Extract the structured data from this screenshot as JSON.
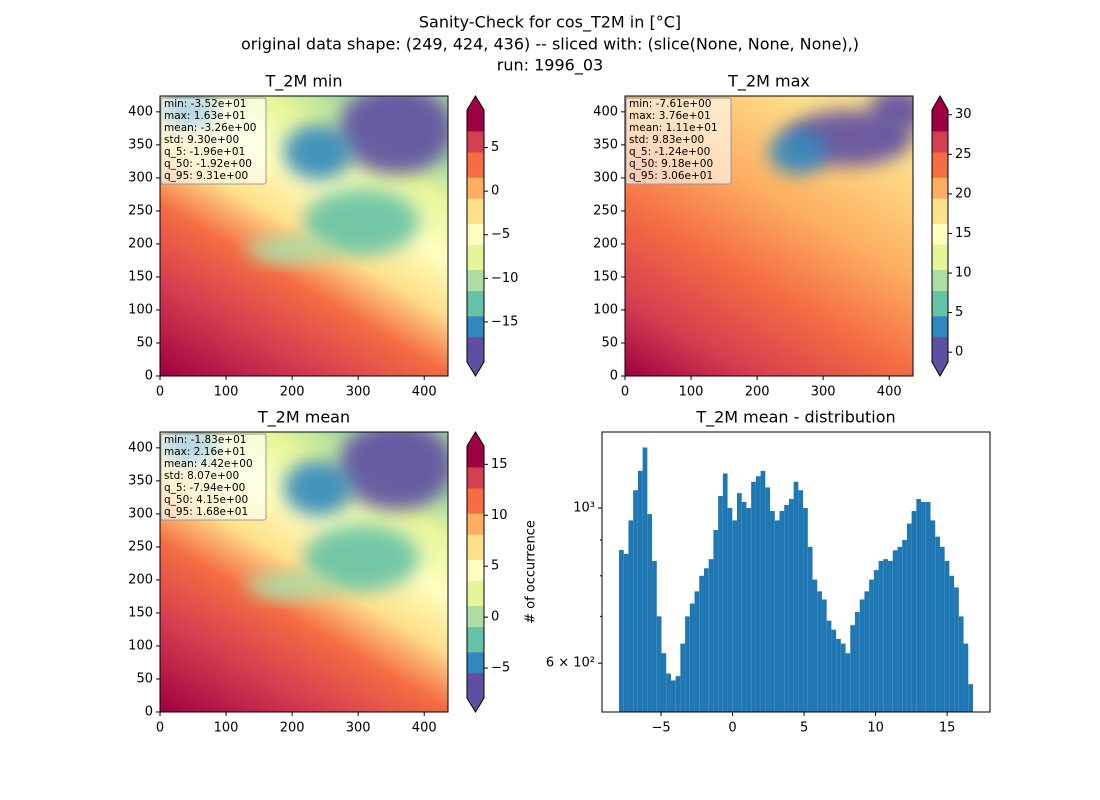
{
  "title": [
    "Sanity-Check for cos_T2M in [°C]",
    "original data shape: (249, 424, 436) -- sliced with: (slice(None, None, None),)",
    "run: 1996_03"
  ],
  "chart_data": [
    {
      "type": "heatmap",
      "title": "T_2M min",
      "xlim": [
        0,
        436
      ],
      "xticks": [
        0,
        100,
        200,
        300,
        400
      ],
      "ylim": [
        0,
        424
      ],
      "yticks": [
        0,
        50,
        100,
        150,
        200,
        250,
        300,
        350,
        400
      ],
      "stats": [
        "min: -3.52e+01",
        "max: 1.63e+01",
        "mean: -3.26e+00",
        "std: 9.30e+00",
        "q_5: -1.96e+01",
        "q_50: -1.92e+00",
        "q_95: 9.31e+00"
      ],
      "colorbar": {
        "lim": [
          -19.6,
          9.31
        ],
        "ticks": [
          {
            "value": -15,
            "label": "−15"
          },
          {
            "value": -10,
            "label": "−10"
          },
          {
            "value": -5,
            "label": "−5"
          },
          0,
          5
        ],
        "extend": "both"
      },
      "colors": [
        "#5e4fa2",
        "#3288bd",
        "#66c2a5",
        "#abdda4",
        "#e6f598",
        "#ffffbf",
        "#fee08b",
        "#fdae61",
        "#f46d43",
        "#d53e4f",
        "#9e0142"
      ]
    },
    {
      "type": "heatmap",
      "title": "T_2M max",
      "xlim": [
        0,
        436
      ],
      "xticks": [
        0,
        100,
        200,
        300,
        400
      ],
      "ylim": [
        0,
        424
      ],
      "yticks": [
        0,
        50,
        100,
        150,
        200,
        250,
        300,
        350,
        400
      ],
      "stats": [
        "min: -7.61e+00",
        "max: 3.76e+01",
        "mean: 1.11e+01",
        "std: 9.83e+00",
        "q_5: -1.24e+00",
        "q_50: 9.18e+00",
        "q_95: 3.06e+01"
      ],
      "colorbar": {
        "lim": [
          -1.24,
          30.6
        ],
        "ticks": [
          0,
          5,
          10,
          15,
          20,
          25,
          30
        ],
        "extend": "both"
      },
      "colors": [
        "#5e4fa2",
        "#3288bd",
        "#66c2a5",
        "#abdda4",
        "#e6f598",
        "#ffffbf",
        "#fee08b",
        "#fdae61",
        "#f46d43",
        "#d53e4f",
        "#9e0142"
      ]
    },
    {
      "type": "heatmap",
      "title": "T_2M mean",
      "xlim": [
        0,
        436
      ],
      "xticks": [
        0,
        100,
        200,
        300,
        400
      ],
      "ylim": [
        0,
        424
      ],
      "yticks": [
        0,
        50,
        100,
        150,
        200,
        250,
        300,
        350,
        400
      ],
      "stats": [
        "min: -1.83e+01",
        "max: 2.16e+01",
        "mean: 4.42e+00",
        "std: 8.07e+00",
        "q_5: -7.94e+00",
        "q_50: 4.15e+00",
        "q_95: 1.68e+01"
      ],
      "colorbar": {
        "lim": [
          -7.94,
          16.8
        ],
        "ticks": [
          {
            "value": -5,
            "label": "−5"
          },
          0,
          5,
          10,
          15
        ],
        "extend": "both"
      },
      "colors": [
        "#5e4fa2",
        "#3288bd",
        "#66c2a5",
        "#abdda4",
        "#e6f598",
        "#ffffbf",
        "#fee08b",
        "#fdae61",
        "#f46d43",
        "#d53e4f",
        "#9e0142"
      ]
    },
    {
      "type": "histogram",
      "title": "T_2M mean - distribution",
      "ylabel": "# of occurrence",
      "color": "#1f77b4",
      "log_y": true,
      "xlim": [
        -9.13,
        18.0
      ],
      "xticks": [
        {
          "value": -5,
          "label": "−5"
        },
        0,
        5,
        10,
        15
      ],
      "ylim": [
        511,
        1284
      ],
      "yticks": [
        {
          "value": 600,
          "label": "6 × 10²"
        },
        {
          "value": 1000,
          "label": "10³"
        }
      ],
      "yminorticks": [
        700,
        800,
        900
      ],
      "bins": [
        -7.94,
        -7.61,
        -7.28,
        -6.95,
        -6.62,
        -6.29,
        -5.96,
        -5.63,
        -5.3,
        -4.97,
        -4.64,
        -4.31,
        -3.98,
        -3.65,
        -3.32,
        -2.99,
        -2.66,
        -2.33,
        -2.0,
        -1.67,
        -1.34,
        -1.01,
        -0.68,
        -0.35,
        -0.02,
        0.31,
        0.64,
        0.97,
        1.3,
        1.63,
        1.96,
        2.29,
        2.62,
        2.95,
        3.28,
        3.61,
        3.94,
        4.27,
        4.6,
        4.93,
        5.26,
        5.59,
        5.92,
        6.25,
        6.58,
        6.91,
        7.24,
        7.57,
        7.9,
        8.23,
        8.56,
        8.89,
        9.22,
        9.55,
        9.88,
        10.21,
        10.54,
        10.87,
        11.2,
        11.53,
        11.86,
        12.19,
        12.52,
        12.85,
        13.18,
        13.51,
        13.84,
        14.17,
        14.5,
        14.83,
        15.16,
        15.49,
        15.82,
        16.15,
        16.48,
        16.81
      ],
      "values": [
        871,
        860,
        960,
        1060,
        1130,
        1220,
        980,
        840,
        700,
        620,
        580,
        567,
        575,
        640,
        700,
        730,
        760,
        800,
        820,
        845,
        930,
        1040,
        1120,
        1000,
        960,
        1050,
        1020,
        1000,
        1090,
        1110,
        1130,
        1070,
        990,
        960,
        990,
        1010,
        1030,
        1090,
        1060,
        1000,
        880,
        790,
        760,
        740,
        690,
        670,
        650,
        640,
        620,
        680,
        710,
        740,
        760,
        790,
        815,
        840,
        845,
        840,
        870,
        880,
        900,
        950,
        990,
        1030,
        1020,
        1020,
        960,
        910,
        880,
        840,
        800,
        770,
        700,
        640,
        560
      ]
    }
  ]
}
